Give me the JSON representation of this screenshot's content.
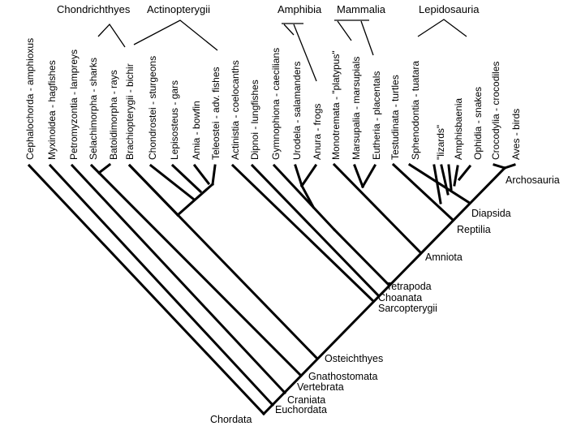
{
  "taxa": [
    "Cephalochorda - amphioxus",
    "Myxinoidea - hagfishes",
    "Petromyzontia - lampreys",
    "Selachimorpha - sharks",
    "Batoidimorpha - rays",
    "Brachiopterygii - bichir",
    "Chondrostei - sturgeons",
    "Lepisosteus - gars",
    "Amia - bowfin",
    "Teleostei - adv. fishes",
    "Actinistia - coelocanths",
    "Dipnoi - lungfishes",
    "Gymnophiona - caecilians",
    "Urodela - salamanders",
    "Anura - frogs",
    "Monotremata - \"platypus\"",
    "Marsupalia - marsupials",
    "Eutheria - placentals",
    "Testudinata - turtles",
    "Sphenodontia - tuatara",
    "\"lizards\"",
    "Amphisbaenia",
    "Ophidia - snakes",
    "Crocodylia - crocodiles",
    "Aves - birds"
  ],
  "groups": [
    "Chondrichthyes",
    "Actinopterygii",
    "Amphibia",
    "Mammalia",
    "Lepidosauria"
  ],
  "nodes": [
    "Archosauria",
    "Diapsida",
    "Reptilia",
    "Amniota",
    "Tetrapoda",
    "Choanata",
    "Sarcopterygii",
    "Osteichthyes",
    "Gnathostomata",
    "Vertebrata",
    "Craniata",
    "Euchordata",
    "Chordata"
  ]
}
